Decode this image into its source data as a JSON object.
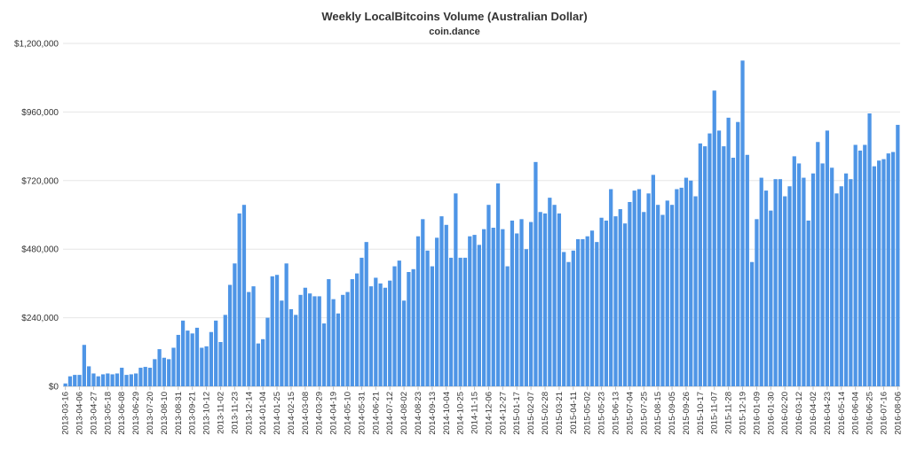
{
  "chart_data": {
    "type": "bar",
    "title": "Weekly LocalBitcoins Volume (Australian Dollar)",
    "subtitle": "coin.dance",
    "xlabel": "",
    "ylabel": "",
    "ylim": [
      0,
      1200000
    ],
    "y_ticks": [
      "$0",
      "$240,000",
      "$480,000",
      "$720,000",
      "$960,000",
      "$1,200,000"
    ],
    "y_tick_values": [
      0,
      240000,
      480000,
      720000,
      960000,
      1200000
    ],
    "grid": true,
    "legend": "none",
    "bar_color": "#4e95e6",
    "start_date": "2013-03-16",
    "week_step": 7,
    "tick_every": 3,
    "values": [
      10000,
      35000,
      40000,
      40000,
      145000,
      70000,
      45000,
      35000,
      42000,
      45000,
      42000,
      45000,
      65000,
      40000,
      42000,
      45000,
      65000,
      68000,
      65000,
      95000,
      130000,
      100000,
      95000,
      135000,
      180000,
      230000,
      195000,
      185000,
      205000,
      135000,
      140000,
      190000,
      230000,
      155000,
      250000,
      355000,
      430000,
      605000,
      635000,
      330000,
      350000,
      150000,
      165000,
      240000,
      385000,
      390000,
      300000,
      430000,
      270000,
      250000,
      320000,
      345000,
      325000,
      315000,
      315000,
      220000,
      375000,
      305000,
      255000,
      320000,
      330000,
      375000,
      395000,
      450000,
      505000,
      350000,
      380000,
      360000,
      345000,
      370000,
      420000,
      440000,
      300000,
      400000,
      410000,
      525000,
      585000,
      475000,
      420000,
      520000,
      595000,
      565000,
      450000,
      675000,
      450000,
      450000,
      525000,
      530000,
      495000,
      550000,
      635000,
      555000,
      710000,
      550000,
      420000,
      580000,
      535000,
      585000,
      480000,
      575000,
      785000,
      610000,
      605000,
      660000,
      635000,
      605000,
      470000,
      435000,
      475000,
      515000,
      515000,
      525000,
      545000,
      505000,
      590000,
      580000,
      690000,
      595000,
      620000,
      570000,
      645000,
      685000,
      690000,
      610000,
      675000,
      740000,
      635000,
      600000,
      650000,
      635000,
      690000,
      695000,
      730000,
      720000,
      665000,
      850000,
      840000,
      885000,
      1035000,
      895000,
      840000,
      940000,
      800000,
      925000,
      1140000,
      810000,
      435000,
      585000,
      730000,
      685000,
      615000,
      725000,
      725000,
      665000,
      700000,
      805000,
      780000,
      730000,
      580000,
      745000,
      855000,
      780000,
      895000,
      765000,
      675000,
      700000,
      745000,
      725000,
      845000,
      825000,
      845000,
      955000,
      770000,
      790000,
      795000,
      815000,
      820000,
      915000
    ]
  }
}
